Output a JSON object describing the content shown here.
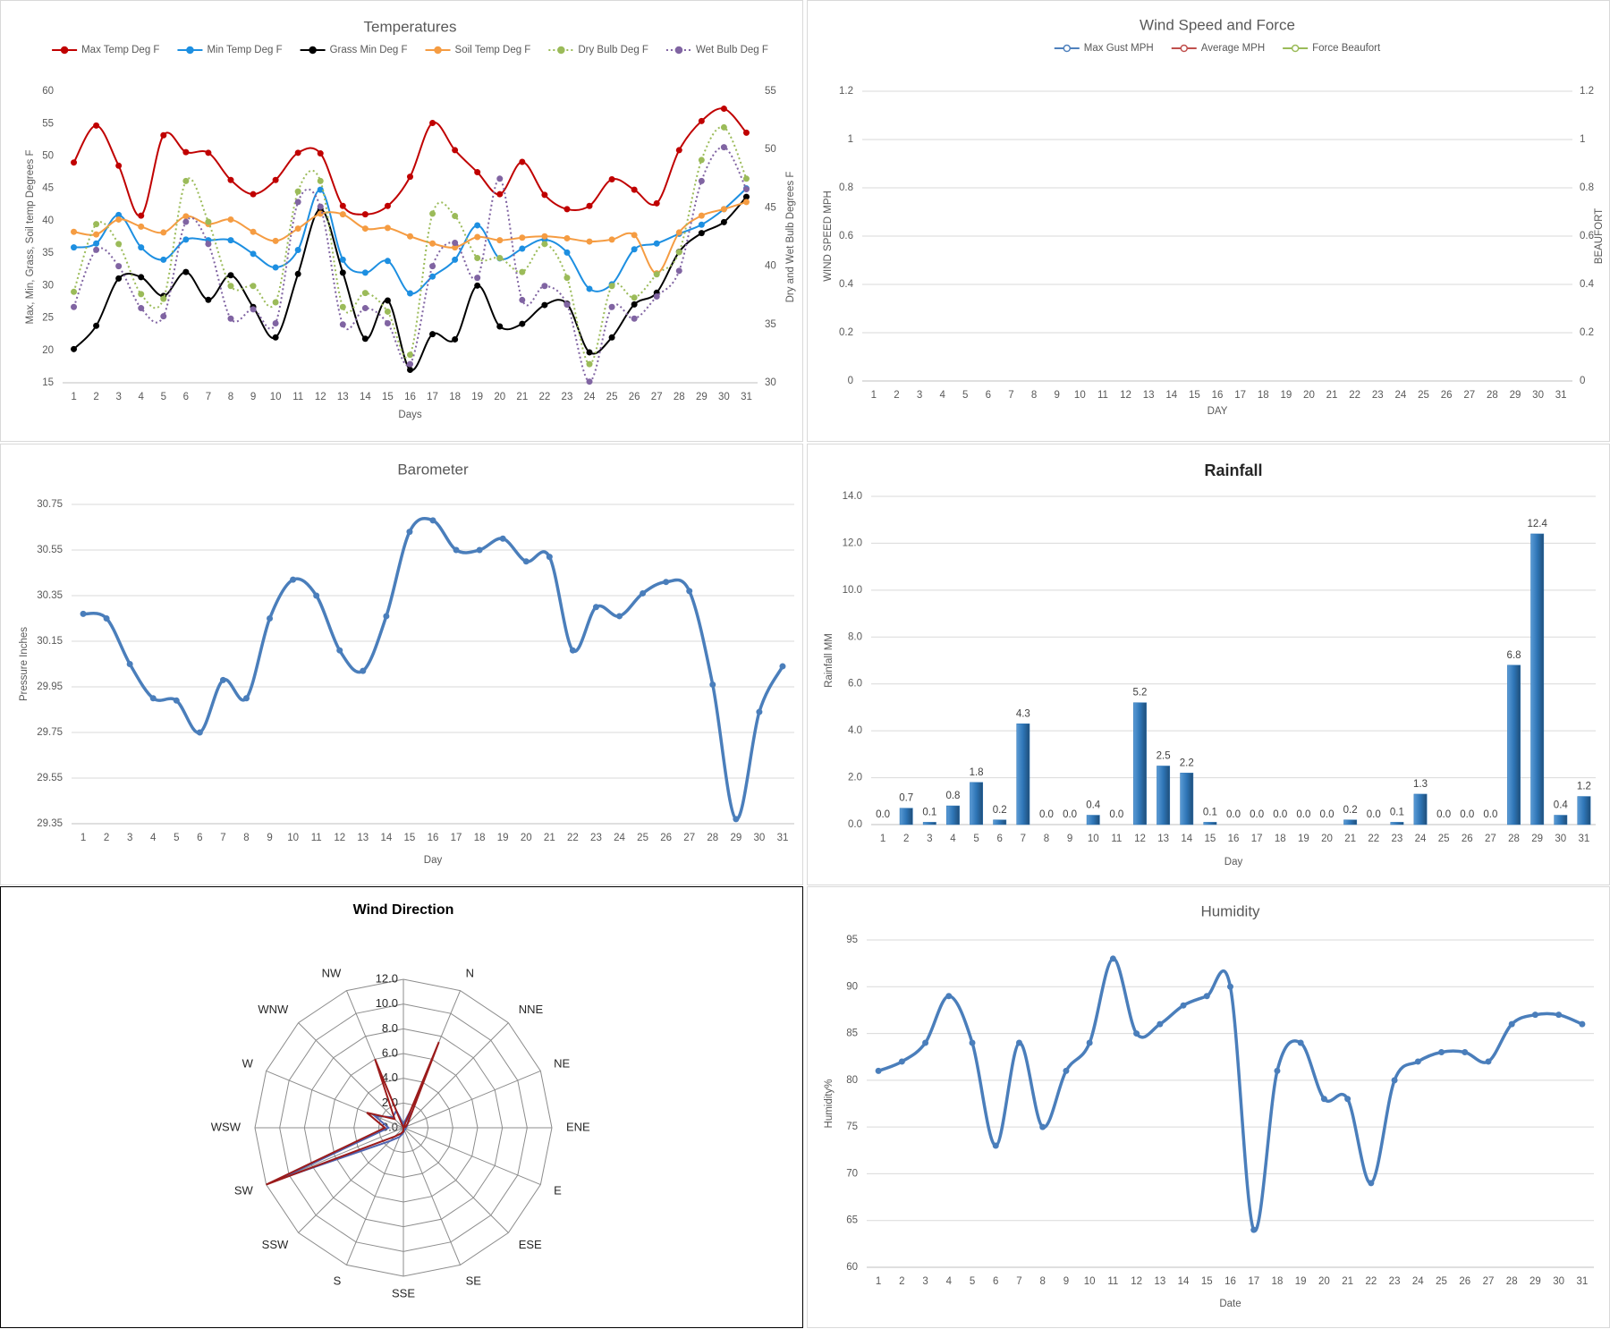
{
  "chart_data": [
    {
      "type": "line",
      "title": "Temperatures",
      "x_label": "Days",
      "y_label": "Max, Min, Grass, Soil temp Degrees F",
      "y2_label": "Dry and Wet Bulb Degrees F",
      "categories": [
        1,
        2,
        3,
        4,
        5,
        6,
        7,
        8,
        9,
        10,
        11,
        12,
        13,
        14,
        15,
        16,
        17,
        18,
        19,
        20,
        21,
        22,
        23,
        24,
        25,
        26,
        27,
        28,
        29,
        30,
        31
      ],
      "ylim": [
        15,
        60
      ],
      "yticks": [
        15,
        20,
        25,
        30,
        35,
        40,
        45,
        50,
        55,
        60
      ],
      "y2lim": [
        30,
        55
      ],
      "y2ticks": [
        30,
        35,
        40,
        45,
        50,
        55
      ],
      "grid": false,
      "smooth": true,
      "markers": true,
      "legend": "top",
      "series": [
        {
          "name": "Max Temp Deg F",
          "color": "#c00000",
          "values": [
            49,
            54.7,
            48.5,
            40.8,
            53.2,
            50.6,
            50.5,
            46.3,
            44.1,
            46.3,
            50.5,
            50.4,
            42.3,
            41,
            42.3,
            46.8,
            55.1,
            50.9,
            47.5,
            44.1,
            49.1,
            44,
            41.8,
            42.3,
            46.4,
            44.8,
            42.7,
            50.9,
            55.4,
            57.3,
            53.6
          ]
        },
        {
          "name": "Min Temp Deg F",
          "color": "#1d8fe1",
          "values": [
            35.9,
            36.5,
            40.9,
            35.9,
            34,
            37.1,
            37,
            37,
            34.9,
            32.8,
            35.5,
            44.8,
            34,
            32,
            33.8,
            28.8,
            31.4,
            34,
            39.3,
            34.2,
            35.7,
            37.1,
            35.1,
            29.5,
            30.2,
            35.6,
            36.5,
            38,
            39.4,
            41.8,
            45
          ]
        },
        {
          "name": "Grass Min Deg F",
          "color": "#000000",
          "values": [
            20.2,
            23.8,
            31.1,
            31.3,
            28.4,
            32.1,
            27.8,
            31.6,
            26.7,
            22,
            31.8,
            41.8,
            32,
            21.8,
            27.7,
            17,
            22.5,
            21.7,
            30,
            23.7,
            24.1,
            27,
            27.2,
            19.7,
            22,
            27.1,
            28.9,
            35.2,
            38.1,
            39.8,
            43.7
          ]
        },
        {
          "name": "Soil Temp Deg F",
          "color": "#f59c42",
          "values": [
            38.3,
            37.9,
            40.2,
            39.1,
            38.2,
            40.7,
            39.5,
            40.2,
            38.3,
            36.9,
            38.8,
            41.1,
            41,
            38.8,
            38.9,
            37.6,
            36.5,
            35.9,
            37.5,
            37,
            37.4,
            37.6,
            37.3,
            36.8,
            37.1,
            37.8,
            31.9,
            38.2,
            40.8,
            41.8,
            42.9
          ]
        },
        {
          "name": "Dry Bulb Deg F",
          "color": "#9bbb59",
          "axis": "y2",
          "line_style": "dotted",
          "values": [
            37.8,
            43.6,
            41.9,
            37.6,
            37.2,
            47.3,
            43.8,
            38.3,
            38.3,
            36.9,
            46.4,
            47.3,
            36.5,
            37.7,
            36.1,
            32.4,
            44.5,
            44.3,
            40.7,
            40.7,
            39.5,
            41.9,
            39,
            31.6,
            38.3,
            37.3,
            39.3,
            41.2,
            49.1,
            51.9,
            47.5
          ]
        },
        {
          "name": "Wet Bulb Deg F",
          "color": "#8064a2",
          "axis": "y2",
          "line_style": "dotted",
          "values": [
            36.5,
            41.4,
            40,
            36.4,
            35.7,
            43.8,
            41.9,
            35.5,
            36.3,
            35.1,
            45.5,
            45.1,
            35,
            36.4,
            35.1,
            31.6,
            40,
            42,
            39,
            47.5,
            37.1,
            38.3,
            36.7,
            30.1,
            36.5,
            35.5,
            37.4,
            39.6,
            47.3,
            50.2,
            46.6
          ]
        }
      ]
    },
    {
      "type": "line",
      "title": "Wind Speed and Force",
      "x_label": "DAY",
      "y_label": "WIND SPEED MPH",
      "y2_label": "BEAUFORT",
      "categories": [
        1,
        2,
        3,
        4,
        5,
        6,
        7,
        8,
        9,
        10,
        11,
        12,
        13,
        14,
        15,
        16,
        17,
        18,
        19,
        20,
        21,
        22,
        23,
        24,
        25,
        26,
        27,
        28,
        29,
        30,
        31
      ],
      "ylim": [
        0,
        1.2
      ],
      "yticks": [
        0,
        0.2,
        0.4,
        0.6,
        0.8,
        1,
        1.2
      ],
      "y2lim": [
        0,
        1.2
      ],
      "y2ticks": [
        0,
        0.2,
        0.4,
        0.6,
        0.8,
        1,
        1.2
      ],
      "grid": true,
      "smooth": true,
      "markers": true,
      "legend": "top",
      "series": [
        {
          "name": "Max Gust MPH",
          "color": "#4f81bd"
        },
        {
          "name": "Average MPH",
          "color": "#c0504d"
        },
        {
          "name": "Force Beaufort",
          "color": "#9bbb59"
        }
      ]
    },
    {
      "type": "line",
      "title": "Barometer",
      "x_label": "Day",
      "y_label": "Pressure Inches",
      "categories": [
        1,
        2,
        3,
        4,
        5,
        6,
        7,
        8,
        9,
        10,
        11,
        12,
        13,
        14,
        15,
        16,
        17,
        18,
        19,
        20,
        21,
        22,
        23,
        24,
        25,
        26,
        27,
        28,
        29,
        30,
        31
      ],
      "ylim": [
        29.35,
        30.75
      ],
      "yticks": [
        29.35,
        29.55,
        29.75,
        29.95,
        30.15,
        30.35,
        30.55,
        30.75
      ],
      "grid": true,
      "smooth": true,
      "markers": true,
      "series": [
        {
          "color": "#4a7ebb",
          "values": [
            30.27,
            30.25,
            30.05,
            29.9,
            29.89,
            29.75,
            29.98,
            29.9,
            30.25,
            30.42,
            30.35,
            30.11,
            30.02,
            30.26,
            30.63,
            30.68,
            30.55,
            30.55,
            30.6,
            30.5,
            30.52,
            30.11,
            30.3,
            30.26,
            30.36,
            30.41,
            30.37,
            29.96,
            29.37,
            29.84,
            30.04
          ]
        }
      ]
    },
    {
      "type": "bar",
      "title": "Rainfall",
      "x_label": "Day",
      "y_label": "Rainfall MM",
      "color": "#2e75b6",
      "categories": [
        1,
        2,
        3,
        4,
        5,
        6,
        7,
        8,
        9,
        10,
        11,
        12,
        13,
        14,
        15,
        16,
        17,
        18,
        19,
        20,
        21,
        22,
        23,
        24,
        25,
        26,
        27,
        28,
        29,
        30,
        31
      ],
      "values": [
        0,
        0.7,
        0.1,
        0.8,
        1.8,
        0.2,
        4.3,
        0,
        0,
        0.4,
        0,
        5.2,
        2.5,
        2.2,
        0.1,
        0,
        0,
        0,
        0,
        0,
        0.2,
        0,
        0.1,
        1.3,
        0,
        0,
        0,
        6.8,
        12.4,
        0.4,
        1.2
      ],
      "value_labels": [
        "0.0",
        "0.7",
        "0.1",
        "0.8",
        "1.8",
        "0.2",
        "4.3",
        "0.0",
        "0.0",
        "0.4",
        "0.0",
        "5.2",
        "2.5",
        "2.2",
        "0.1",
        "0.0",
        "0.0",
        "0.0",
        "0.0",
        "0.0",
        "0.2",
        "0.0",
        "0.1",
        "1.3",
        "0.0",
        "0.0",
        "0.0",
        "6.8",
        "12.4",
        "0.4",
        "1.2"
      ],
      "ylim": [
        0,
        14
      ],
      "yticks": [
        {
          "value": 0,
          "label": "0.0"
        },
        {
          "value": 2,
          "label": "2.0"
        },
        {
          "value": 4,
          "label": "4.0"
        },
        {
          "value": 6,
          "label": "6.0"
        },
        {
          "value": 8,
          "label": "8.0"
        },
        {
          "value": 10,
          "label": "10.0"
        },
        {
          "value": 12,
          "label": "12.0"
        },
        {
          "value": 14,
          "label": "14.0"
        }
      ],
      "grid": true
    },
    {
      "type": "radar",
      "title": "Wind Direction",
      "categories": [
        null,
        "N",
        "NNE",
        "NE",
        "ENE",
        "E",
        "ESE",
        "SE",
        "SSE",
        "S",
        "SSW",
        "SW",
        "WSW",
        "W",
        "WNW",
        "NW"
      ],
      "ylim": [
        0,
        12
      ],
      "yticks": [
        {
          "value": 0,
          "label": "0.0"
        },
        {
          "value": 2,
          "label": "2.0"
        },
        {
          "value": 4,
          "label": "4.0"
        },
        {
          "value": 6,
          "label": "6.0"
        },
        {
          "value": 8,
          "label": "8.0"
        },
        {
          "value": 10,
          "label": "10.0"
        },
        {
          "value": 12,
          "label": "12.0"
        }
      ],
      "series": [
        {
          "color": "#4f63b0",
          "values": [
            0.3,
            1.5,
            0.5,
            0.3,
            0.2,
            0.2,
            0.2,
            0.2,
            0.4,
            0.8,
            1.5,
            11,
            1.2,
            2.5,
            1.2,
            1.5
          ]
        },
        {
          "color": "#9b1b1b",
          "values": [
            0,
            7.5,
            0.5,
            0.2,
            0,
            0,
            0,
            0,
            0.3,
            0.5,
            1,
            12,
            1.5,
            3.2,
            1,
            6
          ]
        }
      ]
    },
    {
      "type": "line",
      "title": "Humidity",
      "x_label": "Date",
      "y_label": "Humidity%",
      "categories": [
        1,
        2,
        3,
        4,
        5,
        6,
        7,
        8,
        9,
        10,
        11,
        12,
        13,
        14,
        15,
        16,
        17,
        18,
        19,
        20,
        21,
        22,
        23,
        24,
        25,
        26,
        27,
        28,
        29,
        30,
        31
      ],
      "ylim": [
        60,
        95
      ],
      "yticks": [
        60,
        65,
        70,
        75,
        80,
        85,
        90,
        95
      ],
      "grid": true,
      "smooth": true,
      "markers": true,
      "series": [
        {
          "color": "#4a7ebb",
          "values": [
            81,
            82,
            84,
            89,
            84,
            73,
            84,
            75,
            81,
            84,
            93,
            85,
            86,
            88,
            89,
            90,
            64,
            81,
            84,
            78,
            78,
            69,
            80,
            82,
            83,
            83,
            82,
            86,
            87,
            87,
            86
          ]
        }
      ]
    }
  ]
}
